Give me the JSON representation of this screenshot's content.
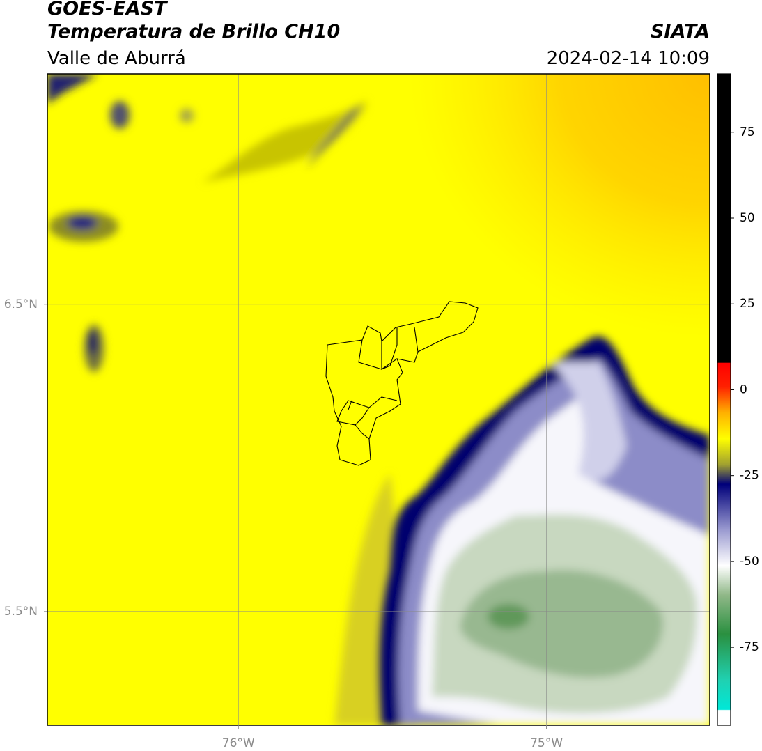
{
  "header": {
    "title": "GOES-EAST",
    "subtitle": "Temperatura de Brillo CH10",
    "region": "Valle de Aburrá",
    "source": "SIATA",
    "datetime": "2024-02-14 10:09"
  },
  "map": {
    "xlim": [
      -76.62,
      -74.47
    ],
    "ylim": [
      5.13,
      7.25
    ],
    "xticks": [
      {
        "value": -76,
        "label": "76°W"
      },
      {
        "value": -75,
        "label": "75°W"
      }
    ],
    "yticks": [
      {
        "value": 6.5,
        "label": "6.5°N"
      },
      {
        "value": 5.5,
        "label": "5.5°N"
      }
    ],
    "grid": true
  },
  "colorbar": {
    "lim": [
      -97.7,
      92
    ],
    "ticks": [
      75,
      50,
      25,
      0,
      -25,
      -50,
      -75
    ]
  }
}
